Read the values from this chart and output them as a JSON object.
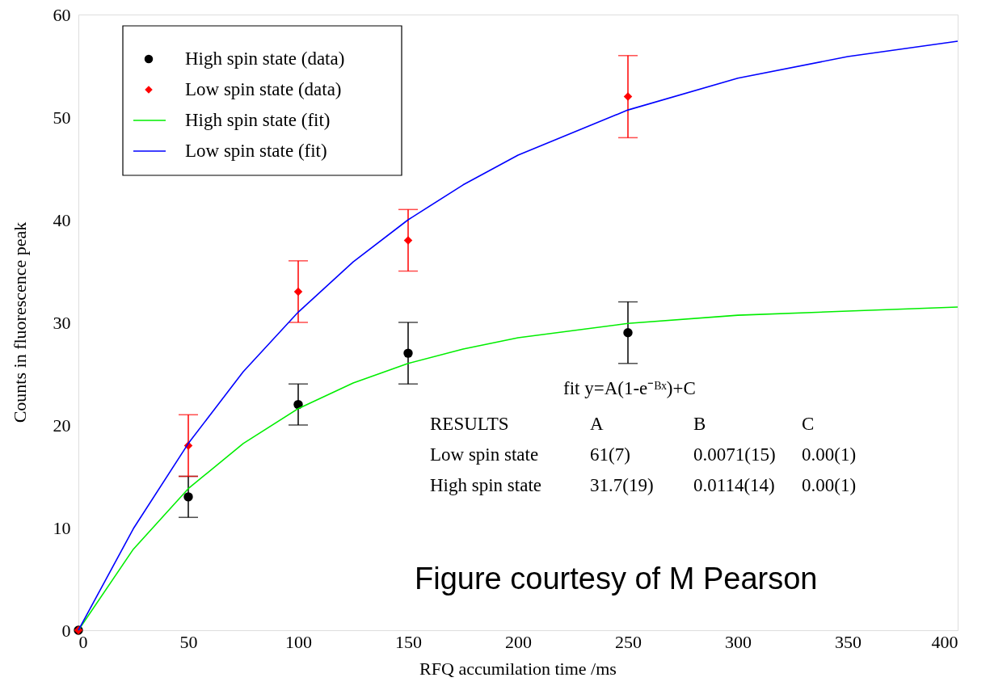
{
  "chart_data": {
    "type": "scatter",
    "xlabel": "RFQ accumilation time /ms",
    "ylabel": "Counts in fluorescence peak",
    "xlim": [
      0,
      400
    ],
    "xticks": [
      0,
      50,
      100,
      150,
      200,
      250,
      300,
      350,
      400
    ],
    "ylim": [
      0,
      60
    ],
    "yticks": [
      0,
      10,
      20,
      30,
      40,
      50,
      60
    ],
    "grid": false,
    "legend": "top left",
    "series": [
      {
        "name": "High spin state (data)",
        "type": "scatter",
        "marker": "circle",
        "color": "#000000",
        "x": [
          0,
          50,
          100,
          150,
          250
        ],
        "values": [
          0,
          13,
          22,
          27,
          29
        ],
        "errors": [
          null,
          2,
          2,
          3,
          3
        ]
      },
      {
        "name": "Low spin state (data)",
        "type": "scatter",
        "marker": "diamond",
        "color": "#ff0000",
        "x": [
          0,
          50,
          100,
          150,
          250
        ],
        "values": [
          0,
          18,
          33,
          38,
          52
        ],
        "errors": [
          null,
          3,
          3,
          3,
          4
        ]
      },
      {
        "name": "High spin state (fit)",
        "type": "line",
        "marker": "none",
        "line_style": "solid",
        "color": "#00ee00",
        "x": [
          0,
          25,
          50,
          75,
          100,
          125,
          150,
          175,
          200,
          250,
          300,
          350,
          400
        ],
        "values": [
          0,
          7.9,
          13.8,
          18.2,
          21.6,
          24.1,
          26.0,
          27.4,
          28.5,
          29.9,
          30.7,
          31.1,
          31.5
        ]
      },
      {
        "name": "Low spin state (fit)",
        "type": "line",
        "marker": "none",
        "line_style": "solid",
        "color": "#0000ff",
        "x": [
          0,
          25,
          50,
          75,
          100,
          125,
          150,
          175,
          200,
          250,
          300,
          350,
          400
        ],
        "values": [
          0,
          9.9,
          18.2,
          25.2,
          31.0,
          35.9,
          40.0,
          43.4,
          46.3,
          50.7,
          53.8,
          55.9,
          57.4
        ]
      }
    ],
    "annotations": [
      "fit   y=A(1-e⁻ᴮˣ)+C",
      "RESULTS",
      "A",
      "B",
      "C",
      "Low spin state",
      "61(7)",
      "0.0071(15)",
      "0.00(1)",
      "High spin state",
      "31.7(19)",
      "0.0114(14)",
      "0.00(1)",
      "Figure courtesy of M Pearson"
    ]
  }
}
